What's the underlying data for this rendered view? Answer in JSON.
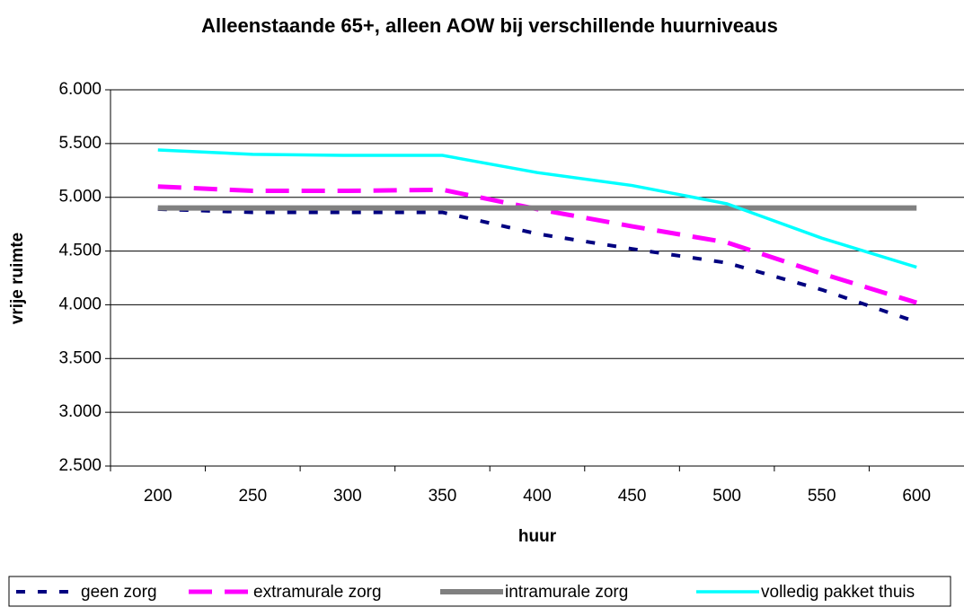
{
  "chart_data": {
    "type": "line",
    "title": "Alleenstaande 65+, alleen AOW bij verschillende huurniveaus",
    "x_label": "huur",
    "y_label": "vrije ruimte",
    "categories": [
      "200",
      "250",
      "300",
      "350",
      "400",
      "450",
      "500",
      "550",
      "600"
    ],
    "ylim": [
      2500,
      6000
    ],
    "yticks": [
      {
        "value": 2500,
        "label": "2.500"
      },
      {
        "value": 3000,
        "label": "3.000"
      },
      {
        "value": 3500,
        "label": "3.500"
      },
      {
        "value": 4000,
        "label": "4.000"
      },
      {
        "value": 4500,
        "label": "4.500"
      },
      {
        "value": 5000,
        "label": "5.000"
      },
      {
        "value": 5500,
        "label": "5.500"
      },
      {
        "value": 6000,
        "label": "6.000"
      }
    ],
    "grid": true,
    "legend": "bottom",
    "series": [
      {
        "name": "geen zorg",
        "color": "#000080",
        "dash": "short",
        "values": [
          4890,
          4860,
          4860,
          4860,
          4660,
          4520,
          4390,
          4140,
          3840
        ]
      },
      {
        "name": "extramurale zorg",
        "color": "#ff00ff",
        "dash": "long",
        "values": [
          5100,
          5060,
          5060,
          5070,
          4890,
          4730,
          4580,
          4290,
          4020
        ]
      },
      {
        "name": "intramurale zorg",
        "color": "#808080",
        "dash": "solid",
        "values": [
          4900,
          4900,
          4900,
          4900,
          4900,
          4900,
          4900,
          4900,
          4900
        ]
      },
      {
        "name": "volledig pakket thuis",
        "color": "#00ffff",
        "dash": "solid",
        "values": [
          5440,
          5400,
          5390,
          5390,
          5230,
          5110,
          4940,
          4620,
          4350
        ]
      }
    ]
  }
}
